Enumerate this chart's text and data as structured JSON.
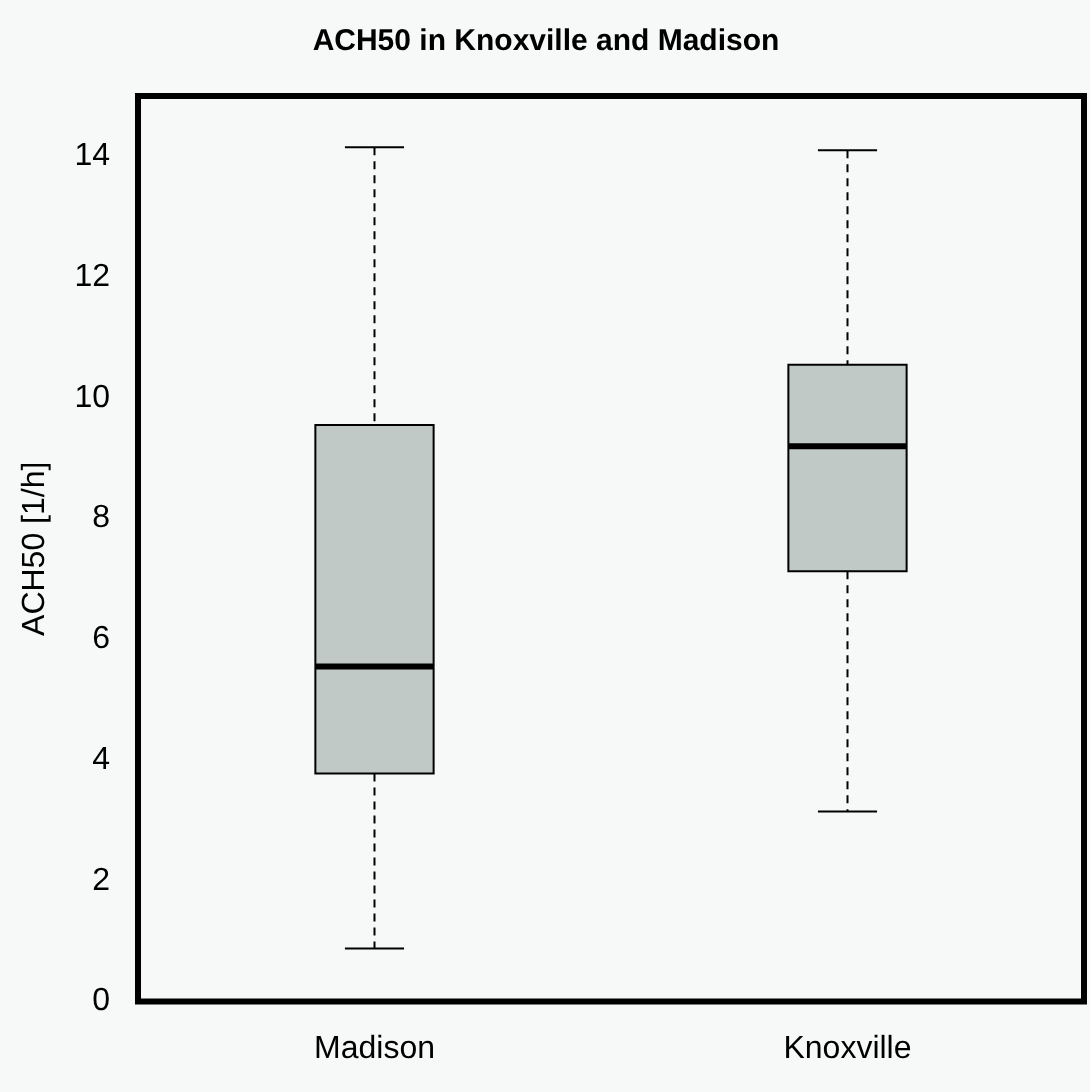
{
  "chart_data": {
    "type": "box",
    "title": "ACH50 in Knoxville and Madison",
    "ylabel": "ACH50 [1/h]",
    "categories": [
      "Madison",
      "Knoxville"
    ],
    "color": "#c0c9c6",
    "boxes": [
      {
        "low": 0.88,
        "q1": 3.78,
        "median": 5.55,
        "q3": 9.55,
        "high": 14.15
      },
      {
        "low": 3.15,
        "q1": 7.13,
        "median": 9.2,
        "q3": 10.55,
        "high": 14.1
      }
    ],
    "ylim": [
      0,
      15
    ],
    "yticks": [
      0,
      2,
      4,
      6,
      8,
      10,
      12,
      14
    ],
    "grid": false
  }
}
